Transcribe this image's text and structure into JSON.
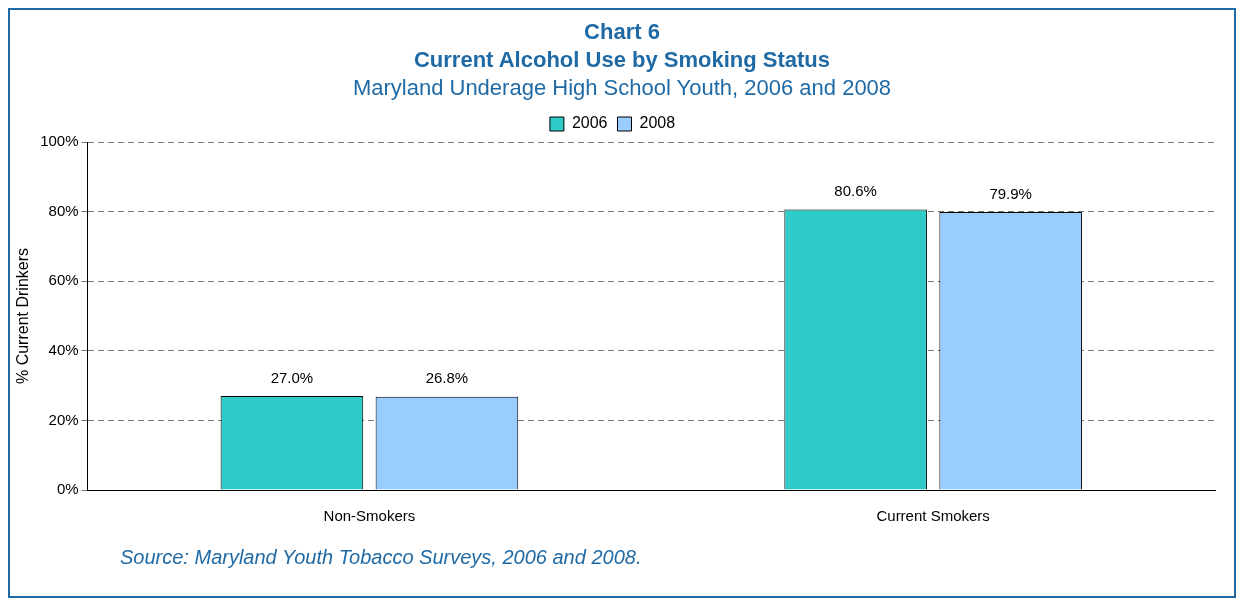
{
  "chart_data": {
    "type": "bar",
    "title": "Chart 6\nCurrent Alcohol Use by Smoking Status",
    "subtitle": "Maryland Underage High School Youth, 2006 and 2008",
    "ylabel": "% Current Drinkers",
    "categories": [
      "Non-Smokers",
      "Current Smokers"
    ],
    "series": [
      {
        "name": "2006",
        "color": "#2ecbc8",
        "values": [
          27.0,
          80.6
        ],
        "value_labels": [
          "27.0%",
          "80.6%"
        ]
      },
      {
        "name": "2008",
        "color": "#99ccff",
        "values": [
          26.8,
          79.9
        ],
        "value_labels": [
          "26.8%",
          "79.9%"
        ]
      }
    ],
    "ylim": [
      0,
      100
    ],
    "yticks": [
      {
        "value": 0,
        "label": "0%"
      },
      {
        "value": 20,
        "label": "20%"
      },
      {
        "value": 40,
        "label": "40%"
      },
      {
        "value": 60,
        "label": "60%"
      },
      {
        "value": 80,
        "label": "80%"
      },
      {
        "value": 100,
        "label": "100%"
      }
    ],
    "grid": "y",
    "legend": "top",
    "annotations": [
      "Source: Maryland Youth Tobacco Surveys, 2006 and 2008."
    ]
  }
}
